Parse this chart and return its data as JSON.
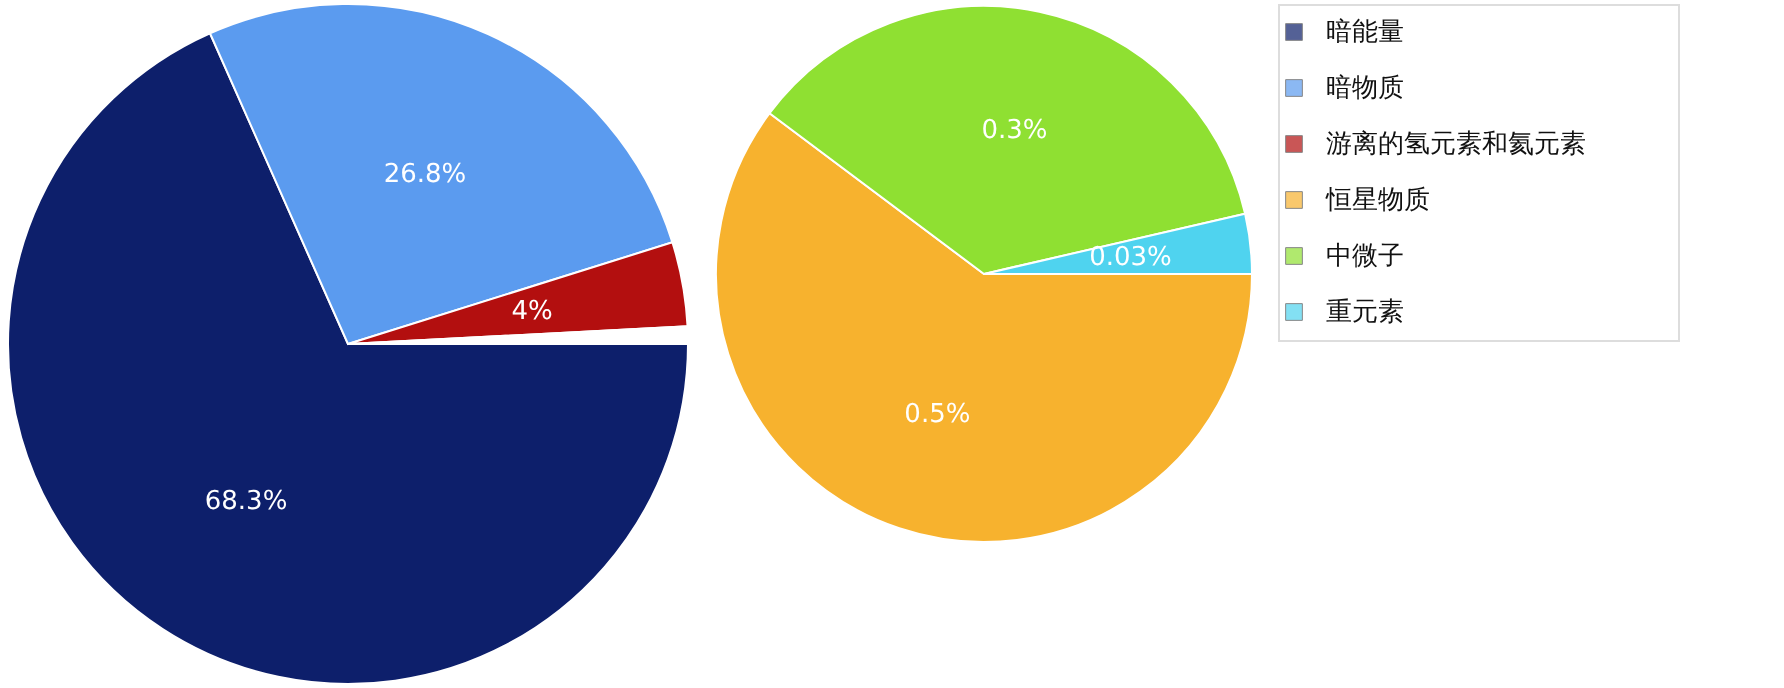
{
  "chart_data": [
    {
      "type": "pie",
      "categories": [
        "暗能量",
        "暗物质",
        "游离的氢元素和氦元素",
        null
      ],
      "values": [
        68.3,
        26.8,
        4,
        0.83
      ],
      "colors": [
        "#0d1f6b",
        "#5b9bef",
        "#b30f0f",
        "#ffffff"
      ],
      "value_labels": [
        "68.3%",
        "26.8%",
        "4%",
        null
      ],
      "legend": "right"
    },
    {
      "type": "pie",
      "categories": [
        "恒星物质",
        "中微子",
        "重元素"
      ],
      "values": [
        0.5,
        0.3,
        0.03
      ],
      "colors": [
        "#f7b22e",
        "#8fe032",
        "#4fd3ef"
      ],
      "value_labels": [
        "0.5%",
        "0.3%",
        "0.03%"
      ],
      "legend": "right"
    }
  ]
}
